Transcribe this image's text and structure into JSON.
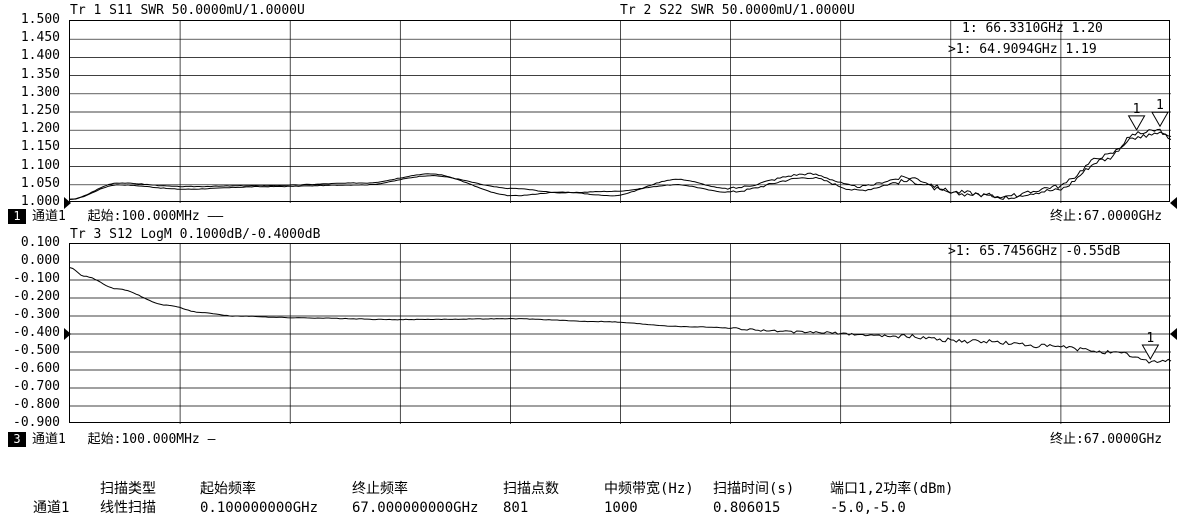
{
  "top_panel": {
    "traces": [
      {
        "label": "Tr 1  S11 SWR 50.0000mU/1.0000U"
      },
      {
        "label": "Tr 2  S22 SWR 50.0000mU/1.0000U"
      }
    ],
    "y_ticks": [
      "1.500",
      "1.450",
      "1.400",
      "1.350",
      "1.300",
      "1.250",
      "1.200",
      "1.150",
      "1.100",
      "1.050",
      "1.000"
    ],
    "markers": [
      {
        "text": " 1:   66.3310GHz  1.20"
      },
      {
        "text": ">1:   64.9094GHz  1.19"
      }
    ],
    "channel": {
      "badge": "1",
      "name": "通道1",
      "start": "起始:100.000MHz ——",
      "stop": "终止:67.0000GHz"
    },
    "marker_label": "1"
  },
  "bottom_panel": {
    "traces": [
      {
        "label": "Tr 3  S12 LogM 0.1000dB/-0.4000dB"
      }
    ],
    "y_ticks": [
      "0.100",
      "0.000",
      "-0.100",
      "-0.200",
      "-0.300",
      "-0.400",
      "-0.500",
      "-0.600",
      "-0.700",
      "-0.800",
      "-0.900"
    ],
    "markers": [
      {
        "text": ">1:   65.7456GHz  -0.55dB"
      }
    ],
    "channel": {
      "badge": "3",
      "name": "通道1",
      "start": "起始:100.000MHz —",
      "stop": "终止:67.0000GHz"
    },
    "marker_label": "1"
  },
  "chart_data": [
    {
      "type": "line",
      "title": "",
      "xlim_ghz": [
        0.1,
        67.0
      ],
      "ylim": [
        1.0,
        1.5
      ],
      "grid": true,
      "series": [
        {
          "name": "S11",
          "x_ghz": [
            0.1,
            3,
            7,
            12,
            18,
            22,
            27,
            30,
            33,
            37,
            40,
            45,
            48,
            51,
            54,
            57,
            60,
            63,
            64.9,
            66.3,
            67
          ],
          "y": [
            1.01,
            1.05,
            1.038,
            1.045,
            1.05,
            1.075,
            1.04,
            1.028,
            1.032,
            1.05,
            1.03,
            1.07,
            1.035,
            1.06,
            1.025,
            1.02,
            1.035,
            1.12,
            1.19,
            1.2,
            1.17
          ]
        },
        {
          "name": "S22",
          "x_ghz": [
            0.1,
            3,
            7,
            12,
            18,
            22,
            27,
            30,
            33,
            37,
            40,
            45,
            48,
            51,
            54,
            57,
            60,
            63,
            64.9,
            66.3,
            67
          ],
          "y": [
            1.01,
            1.055,
            1.045,
            1.048,
            1.055,
            1.08,
            1.02,
            1.03,
            1.02,
            1.065,
            1.04,
            1.08,
            1.045,
            1.07,
            1.03,
            1.015,
            1.045,
            1.13,
            1.18,
            1.19,
            1.18
          ]
        }
      ]
    },
    {
      "type": "line",
      "title": "",
      "xlim_ghz": [
        0.1,
        67.0
      ],
      "ylim": [
        -0.9,
        0.1
      ],
      "grid": true,
      "series": [
        {
          "name": "S12",
          "x_ghz": [
            0.1,
            1,
            3,
            6,
            8,
            10,
            14,
            20,
            27,
            32,
            38,
            45,
            50,
            55,
            60,
            62,
            64,
            65.7,
            67
          ],
          "y": [
            -0.03,
            -0.08,
            -0.15,
            -0.24,
            -0.28,
            -0.3,
            -0.31,
            -0.32,
            -0.315,
            -0.33,
            -0.36,
            -0.39,
            -0.41,
            -0.44,
            -0.47,
            -0.49,
            -0.51,
            -0.55,
            -0.55
          ]
        }
      ]
    }
  ],
  "status_table": {
    "row_label": "通道1",
    "headers": [
      "扫描类型",
      "起始频率",
      "终止频率",
      "扫描点数",
      "中频带宽(Hz)",
      "扫描时间(s)",
      "端口1,2功率(dBm)"
    ],
    "values": [
      "线性扫描",
      "0.100000000GHz",
      "67.000000000GHz",
      "801",
      "1000",
      "0.806015",
      "-5.0,-5.0"
    ]
  }
}
